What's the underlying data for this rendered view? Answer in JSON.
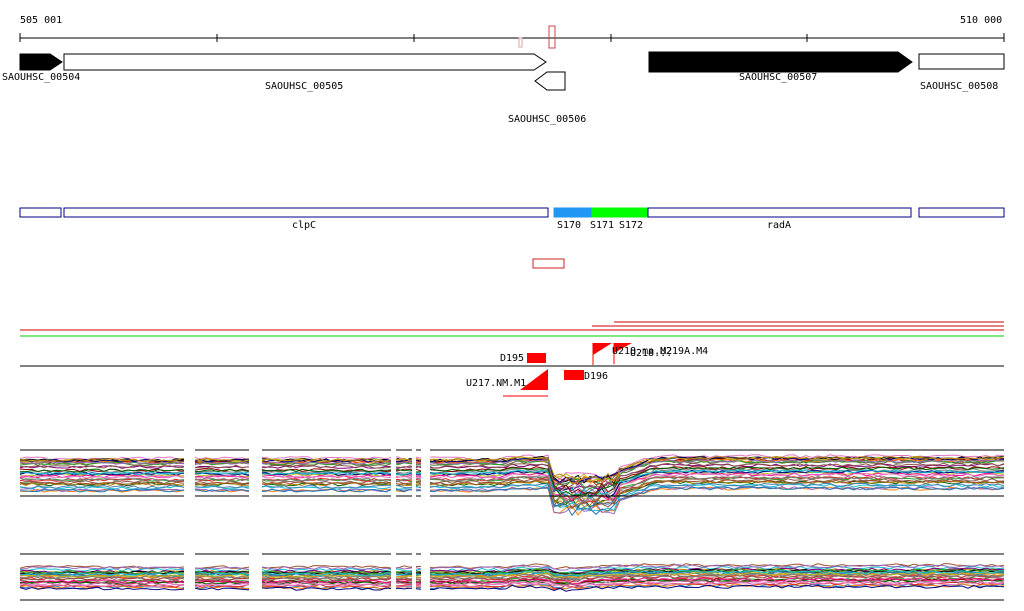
{
  "ruler": {
    "start_label": "505 001",
    "end_label": "510 000"
  },
  "genes": [
    {
      "id": "SAOUHSC_00504",
      "label": "SAOUHSC_00504",
      "strand": "+",
      "fill": "#000000"
    },
    {
      "id": "SAOUHSC_00505",
      "label": "SAOUHSC_00505",
      "strand": "+",
      "fill": "#ffffff"
    },
    {
      "id": "SAOUHSC_00506",
      "label": "SAOUHSC_00506",
      "strand": "-",
      "fill": "#ffffff"
    },
    {
      "id": "SAOUHSC_00507",
      "label": "SAOUHSC_00507",
      "strand": "+",
      "fill": "#000000"
    },
    {
      "id": "SAOUHSC_00508",
      "label": "SAOUHSC_00508",
      "strand": "+",
      "fill": "#ffffff"
    }
  ],
  "segments": [
    {
      "label": "",
      "color": "#ffffff"
    },
    {
      "label": "clpC",
      "color": "#ffffff"
    },
    {
      "label": "S170",
      "color": "#2196f3"
    },
    {
      "label": "S171",
      "color": "#00ff00"
    },
    {
      "label": "S172",
      "color": "#00ff00"
    },
    {
      "label": "radA",
      "color": "#ffffff"
    },
    {
      "label": "",
      "color": "#ffffff"
    }
  ],
  "features": [
    {
      "label": "D195"
    },
    {
      "label": "U217.NM.M1"
    },
    {
      "label": "D196"
    },
    {
      "label": "U218.ma.M2"
    },
    {
      "label": "U219A.M4"
    },
    {
      "label": "U218..."
    }
  ],
  "colors": {
    "segment_border": "#000080",
    "feature_red": "#ff0000",
    "line_green": "#00cc00",
    "ruler_marker": "#cc4444"
  }
}
